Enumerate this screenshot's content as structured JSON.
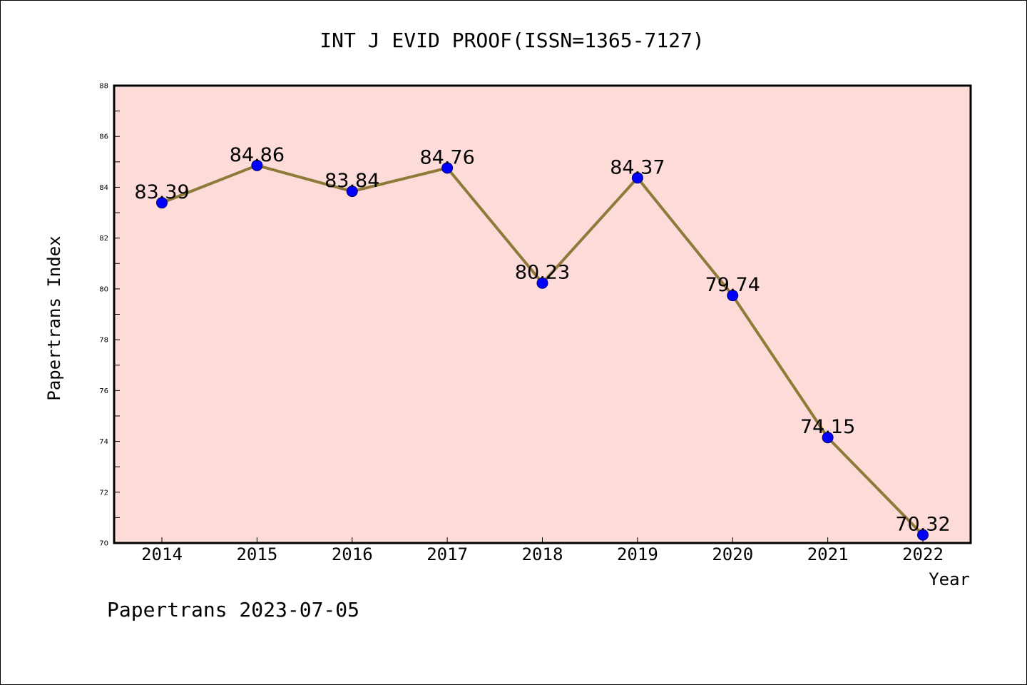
{
  "chart_data": {
    "type": "line",
    "title": "INT J EVID PROOF(ISSN=1365-7127)",
    "xlabel": "Year",
    "ylabel": "Papertrans Index",
    "footer": "Papertrans 2023-07-05",
    "categories": [
      "2014",
      "2015",
      "2016",
      "2017",
      "2018",
      "2019",
      "2020",
      "2021",
      "2022"
    ],
    "series": [
      {
        "values": [
          83.39,
          84.86,
          83.84,
          84.76,
          80.23,
          84.37,
          79.74,
          74.15,
          70.32
        ],
        "data_labels": [
          "83.39",
          "84.86",
          "83.84",
          "84.76",
          "80.23",
          "84.37",
          "79.74",
          "74.15",
          "70.32"
        ]
      }
    ],
    "ylim": [
      70,
      88
    ],
    "yticks": [
      "70",
      "72",
      "74",
      "76",
      "78",
      "80",
      "82",
      "84",
      "86",
      "88"
    ],
    "grid": false,
    "legend": "none",
    "colors": {
      "plot_background": "#fddbd8",
      "line": "#8f7a3a",
      "marker": "#0000ff",
      "axis": "#000000",
      "text": "#000000"
    }
  }
}
